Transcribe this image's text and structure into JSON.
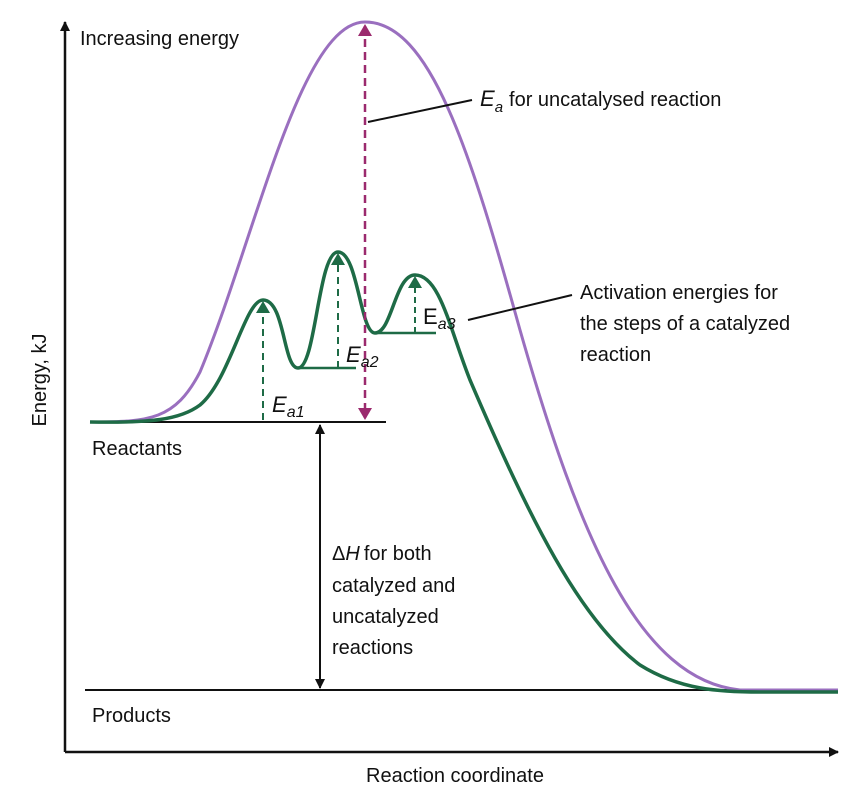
{
  "axes": {
    "y_label": "Increasing energy",
    "y_title": "Energy, kJ",
    "x_title": "Reaction coordinate"
  },
  "levels": {
    "reactants": "Reactants",
    "products": "Products"
  },
  "uncatalysed": {
    "symbol": "E",
    "subscript": "a",
    "text": "for uncatalysed reaction"
  },
  "catalyzed": {
    "lines": [
      "Activation energies for",
      "the steps of a catalyzed",
      "reaction"
    ]
  },
  "steps": [
    {
      "symbol": "E",
      "subscript": "a1"
    },
    {
      "symbol": "E",
      "subscript": "a2"
    },
    {
      "symbol": "E",
      "subscript": "a3"
    }
  ],
  "delta_h": {
    "symbol": "Δ",
    "variable": "H",
    "lines": [
      "for both",
      "catalyzed and",
      "uncatalyzed",
      "reactions"
    ]
  }
}
